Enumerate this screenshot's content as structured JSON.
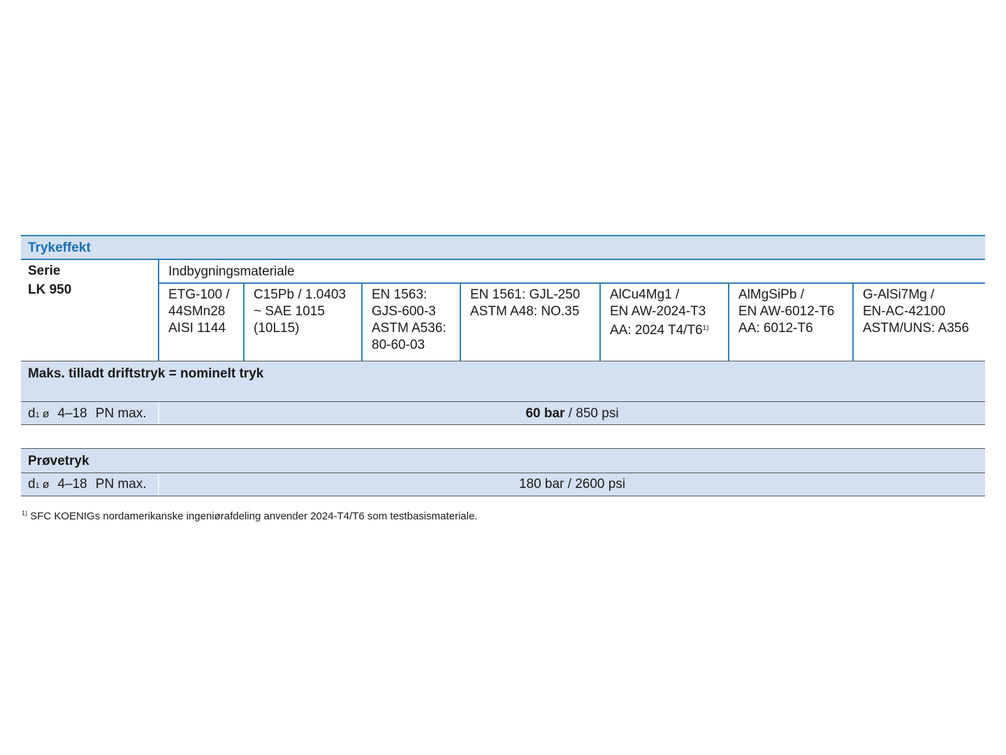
{
  "section_title": "Trykeffekt",
  "series_label": "Serie",
  "series_value": "LK 950",
  "material_header": "Indbygningsmateriale",
  "materials": [
    {
      "text": "ETG-100 /\n44SMn28\nAISI 1144"
    },
    {
      "text": "C15Pb / 1.0403\n~ SAE 1015\n(10L15)"
    },
    {
      "text": "EN 1563:\nGJS-600-3\nASTM A536:\n80-60-03"
    },
    {
      "text": "EN 1561: GJL-250\nASTM A48: NO.35"
    },
    {
      "text": "AlCu4Mg1 /\nEN AW-2024-T3\nAA: 2024 T4/T6",
      "footnote_ref": "1)"
    },
    {
      "text": "AlMgSiPb /\nEN AW-6012-T6\nAA: 6012-T6"
    },
    {
      "text": "G-AlSi7Mg /\nEN-AC-42100\nASTM/UNS: A356"
    }
  ],
  "max_pressure": {
    "title": "Maks. tilladt driftstryk = nominelt tryk",
    "row": {
      "d": "d",
      "d_sub": "1",
      "dia": "ø",
      "range": "4–18",
      "pn": "PN max.",
      "value_bold": "60 bar",
      "value_rest": " / 850 psi"
    }
  },
  "test_pressure": {
    "title": "Prøvetryk",
    "row": {
      "d": "d",
      "d_sub": "1",
      "dia": "ø",
      "range": "4–18",
      "pn": "PN max.",
      "value": "180 bar / 2600 psi"
    }
  },
  "footnote": {
    "mark": "1)",
    "text": "SFC KOENIGs nordamerikanske ingeniørafdeling anvender 2024-T4/T6 som testbasismateriale."
  },
  "colors": {
    "accent": "#1a6fb3",
    "band": "#d3e0f1",
    "rule": "#2f7fc0"
  }
}
